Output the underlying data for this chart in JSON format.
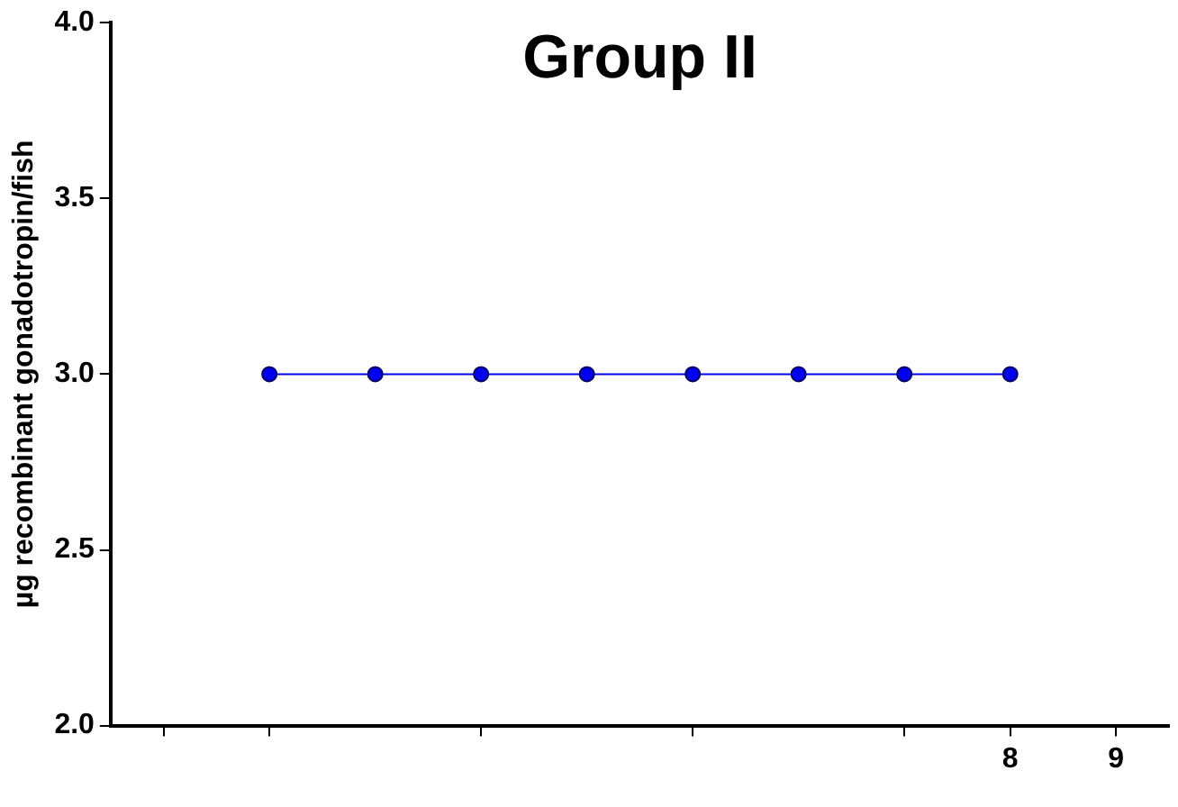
{
  "chart_data": {
    "type": "line",
    "title": "Group II",
    "ylabel": "µg recombinant gonadotropin/fish",
    "x": [
      1,
      2,
      3,
      4,
      5,
      6,
      7,
      8
    ],
    "series": [
      {
        "color": "#0000ee",
        "values": [
          3,
          3,
          3,
          3,
          3,
          3,
          3,
          3
        ]
      }
    ],
    "xlim": [
      -0.5,
      9.5
    ],
    "xticks": [
      {
        "value": 0,
        "label": null
      },
      {
        "value": 1,
        "label": null
      },
      {
        "value": 3,
        "label": null
      },
      {
        "value": 5,
        "label": null
      },
      {
        "value": 7,
        "label": null
      },
      8,
      9
    ],
    "ylim": [
      2,
      4
    ],
    "yticks": [
      {
        "value": 2,
        "label": "2.0"
      },
      {
        "value": 2.5,
        "label": "2.5"
      },
      {
        "value": 3,
        "label": "3.0"
      },
      {
        "value": 3.5,
        "label": "3.5"
      },
      {
        "value": 4,
        "label": "4.0"
      }
    ],
    "grid": false,
    "legend": false,
    "marker": "circle",
    "line_style": "solid"
  }
}
